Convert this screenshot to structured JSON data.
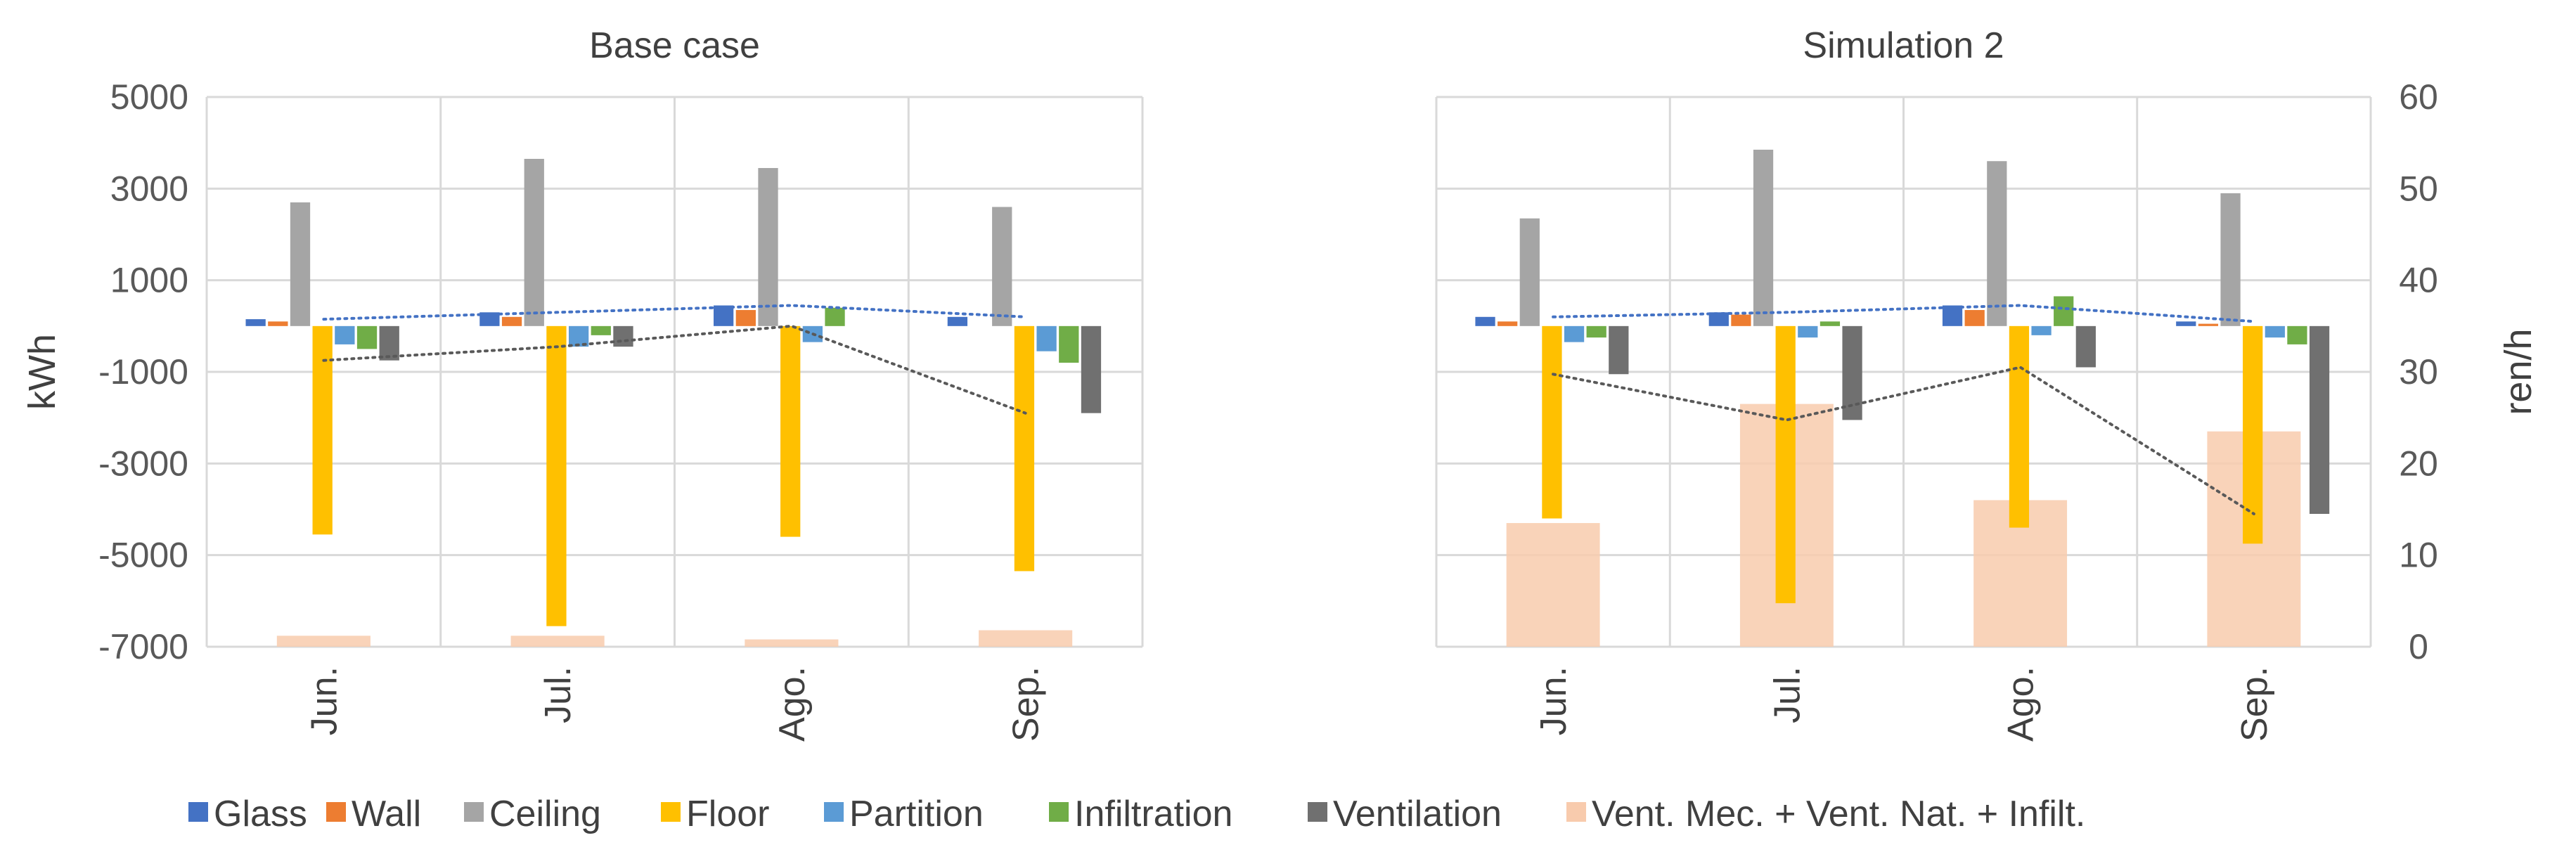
{
  "chart_data": [
    {
      "type": "bar",
      "title": "Base case",
      "categories": [
        "Jun.",
        "Jul.",
        "Ago.",
        "Sep."
      ],
      "ylabel": "kWh",
      "ylim": [
        -7000,
        5000
      ],
      "yticks": [
        "5000",
        "3000",
        "1000",
        "-1000",
        "-3000",
        "-5000",
        "-7000"
      ],
      "grid": true,
      "series": [
        {
          "name": "Glass",
          "color": "#4472c4",
          "values": [
            150,
            300,
            450,
            200
          ]
        },
        {
          "name": "Wall",
          "color": "#ed7d31",
          "values": [
            100,
            200,
            350,
            0
          ]
        },
        {
          "name": "Ceiling",
          "color": "#a5a5a5",
          "values": [
            2700,
            3650,
            3450,
            2600
          ]
        },
        {
          "name": "Floor",
          "color": "#ffc000",
          "values": [
            -4550,
            -6550,
            -4600,
            -5350
          ]
        },
        {
          "name": "Partition",
          "color": "#5b9bd5",
          "values": [
            -400,
            -450,
            -350,
            -550
          ]
        },
        {
          "name": "Infiltration",
          "color": "#70ad47",
          "values": [
            -500,
            -200,
            400,
            -800
          ]
        },
        {
          "name": "Ventilation",
          "color": "#707070",
          "values": [
            -750,
            -450,
            0,
            -1900
          ]
        }
      ],
      "secondary_series": {
        "name": "Vent. Mec. + Vent. Nat. + Infilt.",
        "color": "#f8cbad",
        "values": [
          1.2,
          1.2,
          0.8,
          1.8
        ]
      },
      "trendlines": [
        {
          "style": "dotted",
          "color": "#4472c4",
          "series": "Glass"
        },
        {
          "style": "dotted",
          "color": "#595959",
          "series": "Ventilation"
        }
      ]
    },
    {
      "type": "bar",
      "title": "Simulation 2",
      "categories": [
        "Jun.",
        "Jul.",
        "Ago.",
        "Sep."
      ],
      "y2label": "ren/h",
      "ylim": [
        -7000,
        5000
      ],
      "y2lim": [
        0,
        60
      ],
      "y2ticks": [
        "60",
        "50",
        "40",
        "30",
        "20",
        "10",
        "0"
      ],
      "grid": true,
      "series": [
        {
          "name": "Glass",
          "color": "#4472c4",
          "values": [
            200,
            300,
            450,
            100
          ]
        },
        {
          "name": "Wall",
          "color": "#ed7d31",
          "values": [
            100,
            250,
            350,
            50
          ]
        },
        {
          "name": "Ceiling",
          "color": "#a5a5a5",
          "values": [
            2350,
            3850,
            3600,
            2900
          ]
        },
        {
          "name": "Floor",
          "color": "#ffc000",
          "values": [
            -4200,
            -6050,
            -4400,
            -4750
          ]
        },
        {
          "name": "Partition",
          "color": "#5b9bd5",
          "values": [
            -350,
            -250,
            -200,
            -250
          ]
        },
        {
          "name": "Infiltration",
          "color": "#70ad47",
          "values": [
            -250,
            100,
            650,
            -400
          ]
        },
        {
          "name": "Ventilation",
          "color": "#707070",
          "values": [
            -1050,
            -2050,
            -900,
            -4100
          ]
        }
      ],
      "secondary_series": {
        "name": "Vent. Mec. + Vent. Nat. + Infilt.",
        "color": "#f8cbad",
        "values": [
          13.5,
          26.5,
          16,
          23.5
        ]
      },
      "trendlines": [
        {
          "style": "dotted",
          "color": "#4472c4",
          "series": "Glass"
        },
        {
          "style": "dotted",
          "color": "#595959",
          "series": "Ventilation"
        }
      ]
    }
  ],
  "legend": {
    "position": "bottom",
    "items": [
      {
        "name": "Glass",
        "color": "#4472c4"
      },
      {
        "name": "Wall",
        "color": "#ed7d31"
      },
      {
        "name": "Ceiling",
        "color": "#a5a5a5"
      },
      {
        "name": "Floor",
        "color": "#ffc000"
      },
      {
        "name": "Partition",
        "color": "#5b9bd5"
      },
      {
        "name": "Infiltration",
        "color": "#70ad47"
      },
      {
        "name": "Ventilation",
        "color": "#707070"
      },
      {
        "name": "Vent. Mec. + Vent. Nat. + Infilt.",
        "color": "#f8cbad"
      }
    ]
  }
}
